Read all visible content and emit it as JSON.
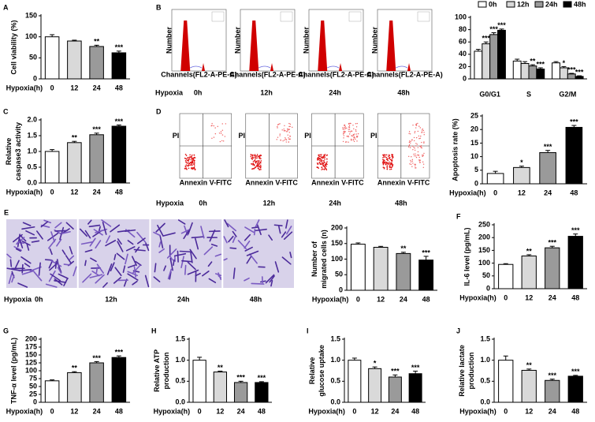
{
  "chart_data": [
    {
      "type": "bar",
      "panel": "A",
      "ylabel": "Cell viability (%)",
      "xlabel": "Hypoxia(h)",
      "categories": [
        "0",
        "12",
        "24",
        "48"
      ],
      "values": [
        100,
        90,
        77,
        62
      ],
      "errors": [
        5,
        2,
        3,
        4
      ],
      "annotations": [
        null,
        null,
        "**",
        "***"
      ],
      "colors": [
        "#ffffff",
        "#d9d9d9",
        "#9a9a9a",
        "#000000"
      ],
      "ylim": [
        0,
        150
      ],
      "yticks": [
        0,
        50,
        100,
        150
      ]
    },
    {
      "type": "flowhistogram",
      "panel": "B",
      "condition": "Hypoxia",
      "labels": [
        "0h",
        "12h",
        "24h",
        "48h"
      ],
      "xlabel": "Channels(FL2-A-PE-A)",
      "ylabel": "Number"
    },
    {
      "type": "groupedbar",
      "categories": [
        "G0/G1",
        "S",
        "G2/M"
      ],
      "ylim": [
        0,
        100
      ],
      "yticks": [
        0,
        20,
        40,
        60,
        80,
        100
      ],
      "series": [
        {
          "name": "0h",
          "color": "#ffffff",
          "values": [
            45,
            29,
            26
          ],
          "errors": [
            3,
            3,
            2
          ],
          "annotations": [
            null,
            null,
            null
          ]
        },
        {
          "name": "12h",
          "color": "#d9d9d9",
          "values": [
            57,
            25,
            18
          ],
          "errors": [
            3,
            3,
            2
          ],
          "annotations": [
            "***",
            null,
            "*"
          ]
        },
        {
          "name": "24h",
          "color": "#9a9a9a",
          "values": [
            72,
            21,
            8
          ],
          "errors": [
            3,
            2,
            1
          ],
          "annotations": [
            "***",
            "**",
            "***"
          ]
        },
        {
          "name": "48h",
          "color": "#000000",
          "values": [
            79,
            16,
            4
          ],
          "errors": [
            2,
            2,
            1
          ],
          "annotations": [
            "***",
            "***",
            "***"
          ]
        }
      ]
    },
    {
      "type": "bar",
      "panel": "C",
      "ylabel": "Relative caspase3 activity",
      "xlabel": "Hypoxia(h)",
      "categories": [
        "0",
        "12",
        "24",
        "48"
      ],
      "values": [
        1.0,
        1.28,
        1.53,
        1.8
      ],
      "errors": [
        0.06,
        0.04,
        0.05,
        0.04
      ],
      "annotations": [
        null,
        "**",
        "***",
        "***"
      ],
      "colors": [
        "#ffffff",
        "#d9d9d9",
        "#9a9a9a",
        "#000000"
      ],
      "ylim": [
        0,
        2
      ],
      "yticks": [
        {
          "value": 0,
          "label": "0.0"
        },
        {
          "value": 0.5,
          "label": "0.5"
        },
        {
          "value": 1,
          "label": "1.0"
        },
        {
          "value": 1.5,
          "label": "1.5"
        },
        {
          "value": 2,
          "label": "2.0"
        }
      ]
    },
    {
      "type": "dotplot",
      "panel": "D",
      "condition": "Hypoxia",
      "labels": [
        "0h",
        "12h",
        "24h",
        "48h"
      ],
      "xlabel": "Annexin V-FITC",
      "ylabel": "PI"
    },
    {
      "type": "bar",
      "ylabel": "Apoptosis rate (%)",
      "xlabel": "Hypoxia(h)",
      "categories": [
        "0",
        "12",
        "24",
        "48"
      ],
      "values": [
        3.8,
        6.0,
        11.5,
        20.8
      ],
      "errors": [
        0.8,
        0.5,
        0.8,
        0.7
      ],
      "annotations": [
        null,
        "*",
        "***",
        "***"
      ],
      "colors": [
        "#ffffff",
        "#d9d9d9",
        "#9a9a9a",
        "#000000"
      ],
      "ylim": [
        0,
        25
      ],
      "yticks": [
        0,
        5,
        10,
        15,
        20,
        25
      ]
    },
    {
      "type": "micrograph",
      "panel": "E",
      "condition": "Hypoxia",
      "labels": [
        "0h",
        "12h",
        "24h",
        "48h"
      ]
    },
    {
      "type": "bar",
      "ylabel": "Number of migrated cells (n)",
      "xlabel": "Hypoxia(h)",
      "categories": [
        "0",
        "12",
        "24",
        "48"
      ],
      "values": [
        148,
        138,
        118,
        97
      ],
      "errors": [
        4,
        3,
        4,
        12
      ],
      "annotations": [
        null,
        null,
        "**",
        "***"
      ],
      "colors": [
        "#ffffff",
        "#d9d9d9",
        "#9a9a9a",
        "#000000"
      ],
      "ylim": [
        0,
        200
      ],
      "yticks": [
        0,
        50,
        100,
        150,
        200
      ]
    },
    {
      "type": "bar",
      "panel": "F",
      "ylabel": "IL-6 level (pg/mL)",
      "xlabel": "Hypoxia(h)",
      "categories": [
        "0",
        "12",
        "24",
        "48"
      ],
      "values": [
        95,
        128,
        160,
        205
      ],
      "errors": [
        3,
        5,
        6,
        9
      ],
      "annotations": [
        null,
        "**",
        "***",
        "***"
      ],
      "colors": [
        "#ffffff",
        "#d9d9d9",
        "#9a9a9a",
        "#000000"
      ],
      "ylim": [
        0,
        250
      ],
      "yticks": [
        0,
        50,
        100,
        150,
        200,
        250
      ]
    },
    {
      "type": "bar",
      "panel": "G",
      "ylabel": "TNF-α level (pg/mL)",
      "xlabel": "Hypoxia(h)",
      "categories": [
        "0",
        "12",
        "24",
        "48"
      ],
      "values": [
        68,
        94,
        125,
        142
      ],
      "errors": [
        3,
        3,
        4,
        5
      ],
      "annotations": [
        null,
        "**",
        "***",
        "***"
      ],
      "colors": [
        "#ffffff",
        "#d9d9d9",
        "#9a9a9a",
        "#000000"
      ],
      "ylim": [
        0,
        200
      ],
      "yticks": [
        0,
        25,
        50,
        75,
        100,
        125,
        150,
        175,
        200
      ]
    },
    {
      "type": "bar",
      "panel": "H",
      "ylabel": "Relative ATP production",
      "xlabel": "Hypoxia(h)",
      "categories": [
        "0",
        "12",
        "24",
        "48"
      ],
      "values": [
        1.0,
        0.72,
        0.47,
        0.47
      ],
      "errors": [
        0.07,
        0.02,
        0.03,
        0.02
      ],
      "annotations": [
        null,
        "**",
        "***",
        "***"
      ],
      "colors": [
        "#ffffff",
        "#d9d9d9",
        "#9a9a9a",
        "#000000"
      ],
      "ylim": [
        0,
        1.5
      ],
      "yticks": [
        {
          "value": 0,
          "label": "0.0"
        },
        {
          "value": 0.5,
          "label": "0.5"
        },
        {
          "value": 1,
          "label": "1.0"
        },
        {
          "value": 1.5,
          "label": "1.5"
        }
      ]
    },
    {
      "type": "bar",
      "panel": "I",
      "ylabel": "Relative glucose uptake",
      "xlabel": "Hypoxia(h)",
      "categories": [
        "0",
        "12",
        "24",
        "48"
      ],
      "values": [
        1.0,
        0.8,
        0.6,
        0.68
      ],
      "errors": [
        0.05,
        0.04,
        0.05,
        0.06
      ],
      "annotations": [
        null,
        "*",
        "***",
        "***"
      ],
      "colors": [
        "#ffffff",
        "#d9d9d9",
        "#9a9a9a",
        "#000000"
      ],
      "ylim": [
        0,
        1.5
      ],
      "yticks": [
        {
          "value": 0,
          "label": "0.0"
        },
        {
          "value": 0.5,
          "label": "0.5"
        },
        {
          "value": 1,
          "label": "1.0"
        },
        {
          "value": 1.5,
          "label": "1.5"
        }
      ]
    },
    {
      "type": "bar",
      "panel": "J",
      "ylabel": "Relative lactate production",
      "xlabel": "Hypoxia(h)",
      "categories": [
        "0",
        "12",
        "24",
        "48"
      ],
      "values": [
        1.0,
        0.76,
        0.52,
        0.62
      ],
      "errors": [
        0.1,
        0.03,
        0.03,
        0.02
      ],
      "annotations": [
        null,
        "**",
        "***",
        "***"
      ],
      "colors": [
        "#ffffff",
        "#d9d9d9",
        "#9a9a9a",
        "#000000"
      ],
      "ylim": [
        0,
        1.5
      ],
      "yticks": [
        {
          "value": 0,
          "label": "0.0"
        },
        {
          "value": 0.5,
          "label": "0.5"
        },
        {
          "value": 1,
          "label": "1.0"
        },
        {
          "value": 1.5,
          "label": "1.5"
        }
      ]
    }
  ]
}
